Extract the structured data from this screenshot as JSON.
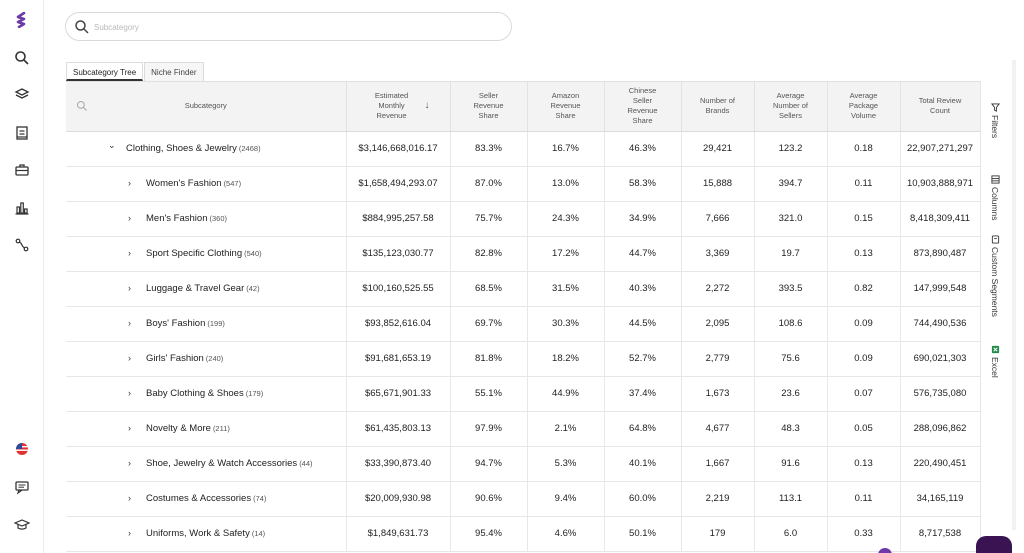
{
  "search": {
    "placeholder": "Subcategory"
  },
  "tabs": [
    {
      "label": "Subcategory Tree",
      "active": true
    },
    {
      "label": "Niche Finder",
      "active": false
    }
  ],
  "table": {
    "headers": {
      "subcategory": "Subcategory",
      "revenue": "Estimated Monthly Revenue",
      "seller_share": "Seller Revenue Share",
      "amazon_share": "Amazon Revenue Share",
      "chinese_share": "Chinese Seller Revenue Share",
      "brands": "Number of Brands",
      "avg_sellers": "Average Number of Sellers",
      "pkg_volume": "Average Package Volume",
      "reviews": "Total Review Count"
    },
    "rows": [
      {
        "name": "Clothing, Shoes & Jewelry",
        "count": "(2468)",
        "revenue": "$3,146,668,016.17",
        "seller": "83.3%",
        "amazon": "16.7%",
        "chinese": "46.3%",
        "brands": "29,421",
        "sellers": "123.2",
        "volume": "0.18",
        "reviews": "22,907,271,297"
      },
      {
        "name": "Women's Fashion",
        "count": "(547)",
        "revenue": "$1,658,494,293.07",
        "seller": "87.0%",
        "amazon": "13.0%",
        "chinese": "58.3%",
        "brands": "15,888",
        "sellers": "394.7",
        "volume": "0.11",
        "reviews": "10,903,888,971"
      },
      {
        "name": "Men's Fashion",
        "count": "(360)",
        "revenue": "$884,995,257.58",
        "seller": "75.7%",
        "amazon": "24.3%",
        "chinese": "34.9%",
        "brands": "7,666",
        "sellers": "321.0",
        "volume": "0.15",
        "reviews": "8,418,309,411"
      },
      {
        "name": "Sport Specific Clothing",
        "count": "(540)",
        "revenue": "$135,123,030.77",
        "seller": "82.8%",
        "amazon": "17.2%",
        "chinese": "44.7%",
        "brands": "3,369",
        "sellers": "19.7",
        "volume": "0.13",
        "reviews": "873,890,487"
      },
      {
        "name": "Luggage & Travel Gear",
        "count": "(42)",
        "revenue": "$100,160,525.55",
        "seller": "68.5%",
        "amazon": "31.5%",
        "chinese": "40.3%",
        "brands": "2,272",
        "sellers": "393.5",
        "volume": "0.82",
        "reviews": "147,999,548"
      },
      {
        "name": "Boys' Fashion",
        "count": "(199)",
        "revenue": "$93,852,616.04",
        "seller": "69.7%",
        "amazon": "30.3%",
        "chinese": "44.5%",
        "brands": "2,095",
        "sellers": "108.6",
        "volume": "0.09",
        "reviews": "744,490,536"
      },
      {
        "name": "Girls' Fashion",
        "count": "(240)",
        "revenue": "$91,681,653.19",
        "seller": "81.8%",
        "amazon": "18.2%",
        "chinese": "52.7%",
        "brands": "2,779",
        "sellers": "75.6",
        "volume": "0.09",
        "reviews": "690,021,303"
      },
      {
        "name": "Baby Clothing & Shoes",
        "count": "(179)",
        "revenue": "$65,671,901.33",
        "seller": "55.1%",
        "amazon": "44.9%",
        "chinese": "37.4%",
        "brands": "1,673",
        "sellers": "23.6",
        "volume": "0.07",
        "reviews": "576,735,080"
      },
      {
        "name": "Novelty & More",
        "count": "(211)",
        "revenue": "$61,435,803.13",
        "seller": "97.9%",
        "amazon": "2.1%",
        "chinese": "64.8%",
        "brands": "4,677",
        "sellers": "48.3",
        "volume": "0.05",
        "reviews": "288,096,862"
      },
      {
        "name": "Shoe, Jewelry & Watch Accessories",
        "count": "(44)",
        "revenue": "$33,390,873.40",
        "seller": "94.7%",
        "amazon": "5.3%",
        "chinese": "40.1%",
        "brands": "1,667",
        "sellers": "91.6",
        "volume": "0.13",
        "reviews": "220,490,451"
      },
      {
        "name": "Costumes & Accessories",
        "count": "(74)",
        "revenue": "$20,009,930.98",
        "seller": "90.6%",
        "amazon": "9.4%",
        "chinese": "60.0%",
        "brands": "2,219",
        "sellers": "113.1",
        "volume": "0.11",
        "reviews": "34,165,119"
      },
      {
        "name": "Uniforms, Work & Safety",
        "count": "(14)",
        "revenue": "$1,849,631.73",
        "seller": "95.4%",
        "amazon": "4.6%",
        "chinese": "50.1%",
        "brands": "179",
        "sellers": "6.0",
        "volume": "0.33",
        "reviews": "8,717,538"
      }
    ]
  },
  "right_panel": {
    "filters": "Filters",
    "columns": "Columns",
    "segments": "Custom Segments",
    "excel": "Excel"
  },
  "icons": [
    "logo-icon",
    "search-icon",
    "layers-icon",
    "document-icon",
    "briefcase-icon",
    "bar-chart-icon",
    "route-icon",
    "us-flag-icon",
    "chat-icon",
    "graduation-cap-icon"
  ],
  "colors": {
    "brand": "#6e3aa8",
    "header_bg": "#f3f3f3",
    "chat_button": "#3a1452"
  }
}
